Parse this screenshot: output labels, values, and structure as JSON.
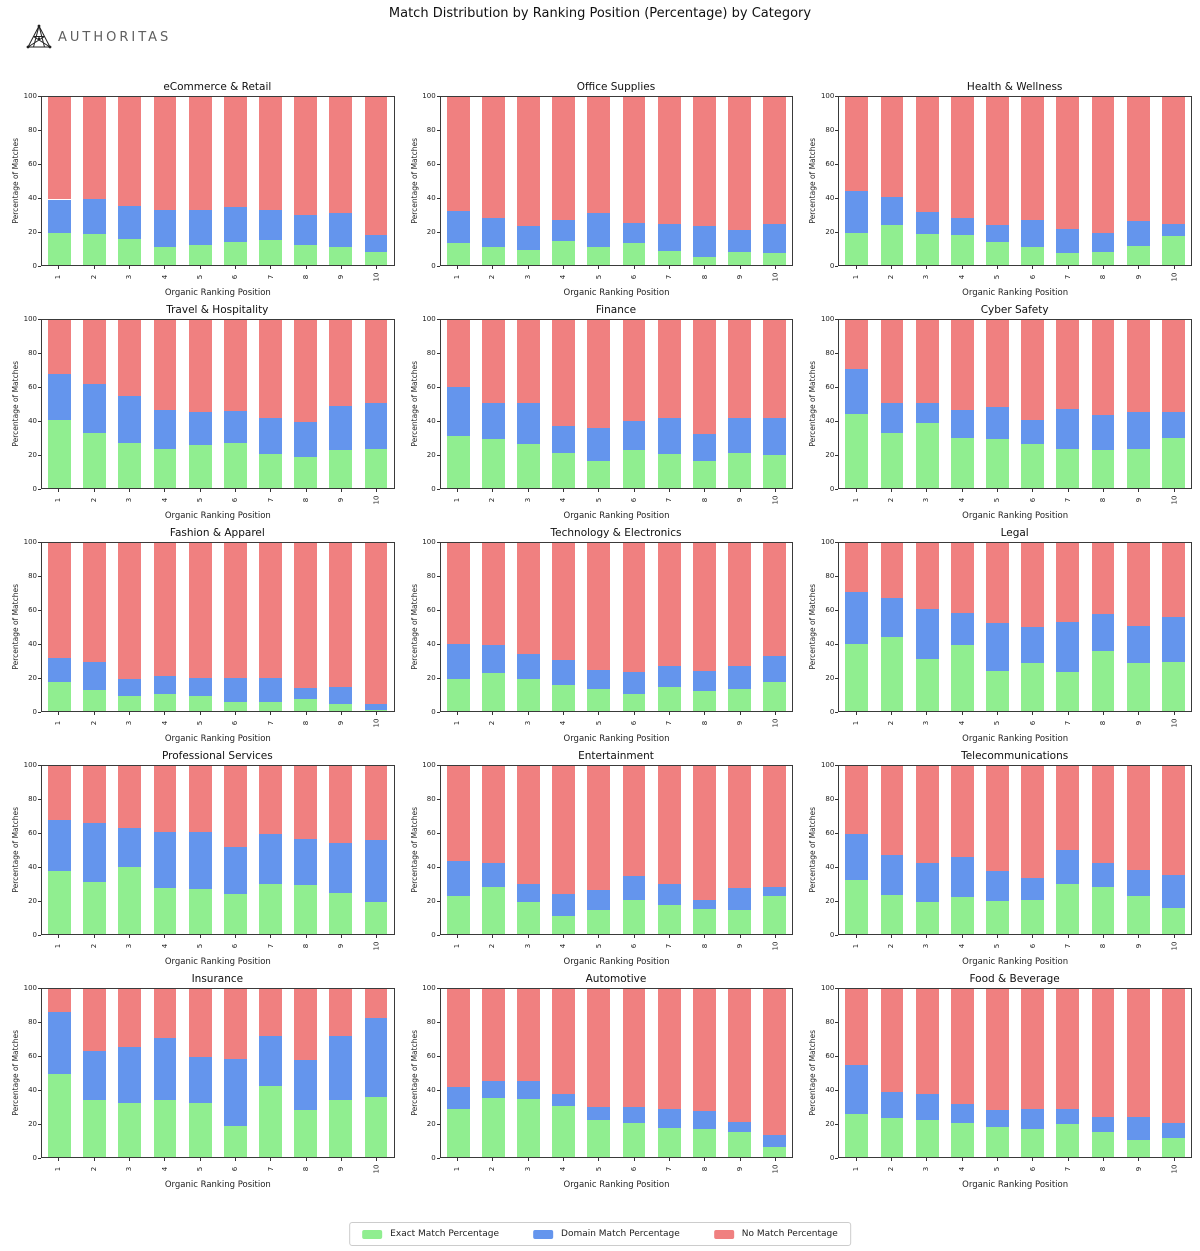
{
  "page": {
    "title": "Match Distribution by Ranking Position (Percentage) by Category",
    "brand": "AUTHORITAS"
  },
  "colors": {
    "exact": "#90EE90",
    "domain": "#6495ED",
    "no_match": "#F08080"
  },
  "legend": [
    {
      "label": "Exact Match Percentage",
      "color_key": "exact"
    },
    {
      "label": "Domain Match Percentage",
      "color_key": "domain"
    },
    {
      "label": "No Match Percentage",
      "color_key": "no_match"
    }
  ],
  "chart_data": {
    "type": "bar",
    "stacked": true,
    "x": [
      1,
      2,
      3,
      4,
      5,
      6,
      7,
      8,
      9,
      10
    ],
    "xlabel": "Organic Ranking Position",
    "ylabel": "Percentage of Matches",
    "ylim": [
      0,
      100
    ],
    "yticks": [
      0,
      20,
      40,
      60,
      80,
      100
    ],
    "series_names": [
      "Exact Match Percentage",
      "Domain Match Percentage",
      "No Match Percentage"
    ],
    "charts": [
      {
        "title": "eCommerce & Retail",
        "series": [
          {
            "name": "Exact Match Percentage",
            "values": [
              19,
              18.5,
              15.5,
              11,
              12,
              13.5,
              15,
              12,
              10.5,
              8
            ]
          },
          {
            "name": "Domain Match Percentage",
            "values": [
              20,
              20.5,
              19.5,
              21.5,
              20.5,
              21,
              18,
              17.5,
              20.5,
              10
            ]
          },
          {
            "name": "No Match Percentage",
            "values": [
              61,
              61,
              65,
              67.5,
              67.5,
              65.5,
              67,
              70.5,
              69,
              82
            ]
          }
        ]
      },
      {
        "title": "Office Supplies",
        "series": [
          {
            "name": "Exact Match Percentage",
            "values": [
              13,
              11,
              9,
              14.5,
              11,
              13,
              8.5,
              4.5,
              8,
              7
            ]
          },
          {
            "name": "Domain Match Percentage",
            "values": [
              19,
              17,
              14.5,
              12.5,
              20,
              12,
              16,
              19,
              13,
              17.5
            ]
          },
          {
            "name": "No Match Percentage",
            "values": [
              68,
              72,
              76.5,
              73,
              69,
              75,
              75.5,
              76.5,
              79,
              75.5
            ]
          }
        ]
      },
      {
        "title": "Health & Wellness",
        "series": [
          {
            "name": "Exact Match Percentage",
            "values": [
              19,
              24,
              18.5,
              18,
              13.5,
              10.5,
              7,
              8,
              11.5,
              17.5
            ]
          },
          {
            "name": "Domain Match Percentage",
            "values": [
              25,
              16.5,
              13,
              10,
              10.5,
              16.5,
              14.5,
              11,
              14.5,
              7
            ]
          },
          {
            "name": "No Match Percentage",
            "values": [
              56,
              59.5,
              68.5,
              72,
              76,
              73,
              78.5,
              81,
              74,
              75.5
            ]
          }
        ]
      },
      {
        "title": "Travel & Hospitality",
        "series": [
          {
            "name": "Exact Match Percentage",
            "values": [
              40.5,
              33,
              26.5,
              23,
              25.5,
              26.5,
              20,
              18.5,
              22.5,
              23
            ]
          },
          {
            "name": "Domain Match Percentage",
            "values": [
              27.5,
              29,
              28,
              23.5,
              19.5,
              19.5,
              21.5,
              20.5,
              26.5,
              27.5
            ]
          },
          {
            "name": "No Match Percentage",
            "values": [
              32,
              38,
              45.5,
              53.5,
              55,
              54,
              58.5,
              61,
              51,
              49.5
            ]
          }
        ]
      },
      {
        "title": "Finance",
        "series": [
          {
            "name": "Exact Match Percentage",
            "values": [
              31,
              29,
              26,
              21,
              16,
              22.5,
              20.5,
              16,
              21,
              19.5
            ]
          },
          {
            "name": "Domain Match Percentage",
            "values": [
              29,
              21.5,
              24.5,
              16,
              20,
              17.5,
              21,
              16,
              20.5,
              22
            ]
          },
          {
            "name": "No Match Percentage",
            "values": [
              40,
              49.5,
              49.5,
              63,
              64,
              60,
              58.5,
              68,
              58.5,
              58.5
            ]
          }
        ]
      },
      {
        "title": "Cyber Safety",
        "series": [
          {
            "name": "Exact Match Percentage",
            "values": [
              44,
              32.5,
              38.5,
              29.5,
              29,
              26,
              23.5,
              22.5,
              23.5,
              30
            ]
          },
          {
            "name": "Domain Match Percentage",
            "values": [
              27,
              18,
              12,
              17,
              19.5,
              14.5,
              23.5,
              21,
              21.5,
              15
            ]
          },
          {
            "name": "No Match Percentage",
            "values": [
              29,
              49.5,
              49.5,
              53.5,
              51.5,
              59.5,
              53,
              56.5,
              55,
              55
            ]
          }
        ]
      },
      {
        "title": "Fashion & Apparel",
        "series": [
          {
            "name": "Exact Match Percentage",
            "values": [
              17,
              12.5,
              9,
              10,
              9,
              5.5,
              5.5,
              7,
              4,
              0.5
            ]
          },
          {
            "name": "Domain Match Percentage",
            "values": [
              14.5,
              16.5,
              10,
              11,
              10.5,
              14,
              14,
              6.5,
              10,
              3.5
            ]
          },
          {
            "name": "No Match Percentage",
            "values": [
              68.5,
              71,
              81,
              79,
              80.5,
              80.5,
              80.5,
              86.5,
              86,
              96
            ]
          }
        ]
      },
      {
        "title": "Technology & Electronics",
        "series": [
          {
            "name": "Exact Match Percentage",
            "values": [
              19,
              22.5,
              19,
              15.5,
              13,
              10,
              14.5,
              12,
              13,
              17.5
            ]
          },
          {
            "name": "Domain Match Percentage",
            "values": [
              21,
              17,
              15,
              15,
              11.5,
              13,
              12,
              12,
              14,
              15.5
            ]
          },
          {
            "name": "No Match Percentage",
            "values": [
              60,
              60.5,
              66,
              69.5,
              75.5,
              77,
              73.5,
              76,
              73,
              67
            ]
          }
        ]
      },
      {
        "title": "Legal",
        "series": [
          {
            "name": "Exact Match Percentage",
            "values": [
              40,
              44,
              31,
              39,
              24,
              28.5,
              23.5,
              36,
              28.5,
              29
            ]
          },
          {
            "name": "Domain Match Percentage",
            "values": [
              31,
              23.5,
              29.5,
              19.5,
              28.5,
              21.5,
              29.5,
              21.5,
              22,
              27
            ]
          },
          {
            "name": "No Match Percentage",
            "values": [
              29,
              32.5,
              39.5,
              41.5,
              47.5,
              50,
              47,
              42.5,
              49.5,
              44
            ]
          }
        ]
      },
      {
        "title": "Professional Services",
        "series": [
          {
            "name": "Exact Match Percentage",
            "values": [
              37.5,
              31,
              40,
              27.5,
              26.5,
              24,
              30,
              29,
              24.5,
              19
            ]
          },
          {
            "name": "Domain Match Percentage",
            "values": [
              30.5,
              35,
              23,
              33,
              34.5,
              28,
              29.5,
              27.5,
              29.5,
              37
            ]
          },
          {
            "name": "No Match Percentage",
            "values": [
              32,
              34,
              37,
              39.5,
              39,
              48,
              40.5,
              43.5,
              46,
              44
            ]
          }
        ]
      },
      {
        "title": "Entertainment",
        "series": [
          {
            "name": "Exact Match Percentage",
            "values": [
              22.5,
              28,
              19,
              10.5,
              14,
              20.5,
              17.5,
              15,
              14.5,
              22.5
            ]
          },
          {
            "name": "Domain Match Percentage",
            "values": [
              21,
              14.5,
              11,
              13.5,
              12,
              14,
              12.5,
              5,
              13,
              5.5
            ]
          },
          {
            "name": "No Match Percentage",
            "values": [
              56.5,
              57.5,
              70,
              76,
              74,
              65.5,
              70,
              80,
              72.5,
              72
            ]
          }
        ]
      },
      {
        "title": "Telecommunications",
        "series": [
          {
            "name": "Exact Match Percentage",
            "values": [
              32,
              23.5,
              19,
              22,
              19.5,
              20,
              29.5,
              28,
              22.5,
              15.5
            ]
          },
          {
            "name": "Domain Match Percentage",
            "values": [
              27.5,
              23.5,
              23,
              24,
              18,
              13.5,
              20.5,
              14,
              15.5,
              19.5
            ]
          },
          {
            "name": "No Match Percentage",
            "values": [
              40.5,
              53,
              58,
              54,
              62.5,
              66.5,
              50,
              58,
              62,
              65
            ]
          }
        ]
      },
      {
        "title": "Insurance",
        "series": [
          {
            "name": "Exact Match Percentage",
            "values": [
              49.5,
              34,
              32,
              34,
              32,
              18.5,
              42,
              28,
              34,
              36
            ]
          },
          {
            "name": "Domain Match Percentage",
            "values": [
              37,
              29,
              33.5,
              37,
              27.5,
              40,
              30,
              30,
              38,
              46.5
            ]
          },
          {
            "name": "No Match Percentage",
            "values": [
              13.5,
              37,
              34.5,
              29,
              40.5,
              41.5,
              28,
              42,
              28,
              17.5
            ]
          }
        ]
      },
      {
        "title": "Automotive",
        "series": [
          {
            "name": "Exact Match Percentage",
            "values": [
              28.5,
              35,
              34.5,
              30.5,
              22,
              20,
              17,
              16.5,
              15,
              6
            ]
          },
          {
            "name": "Domain Match Percentage",
            "values": [
              13,
              10.5,
              10.5,
              7,
              7.5,
              10,
              11.5,
              11,
              6,
              7
            ]
          },
          {
            "name": "No Match Percentage",
            "values": [
              58.5,
              54.5,
              55,
              62.5,
              70.5,
              70,
              71.5,
              72.5,
              79,
              87
            ]
          }
        ]
      },
      {
        "title": "Food & Beverage",
        "series": [
          {
            "name": "Exact Match Percentage",
            "values": [
              25.5,
              23,
              22,
              20,
              18,
              16.5,
              19.5,
              15,
              10,
              11.5
            ]
          },
          {
            "name": "Domain Match Percentage",
            "values": [
              29,
              15.5,
              15.5,
              11.5,
              10,
              12,
              9,
              9,
              14,
              8.5
            ]
          },
          {
            "name": "No Match Percentage",
            "values": [
              45.5,
              61.5,
              62.5,
              68.5,
              72,
              71.5,
              71.5,
              76,
              76,
              80
            ]
          }
        ]
      }
    ]
  }
}
